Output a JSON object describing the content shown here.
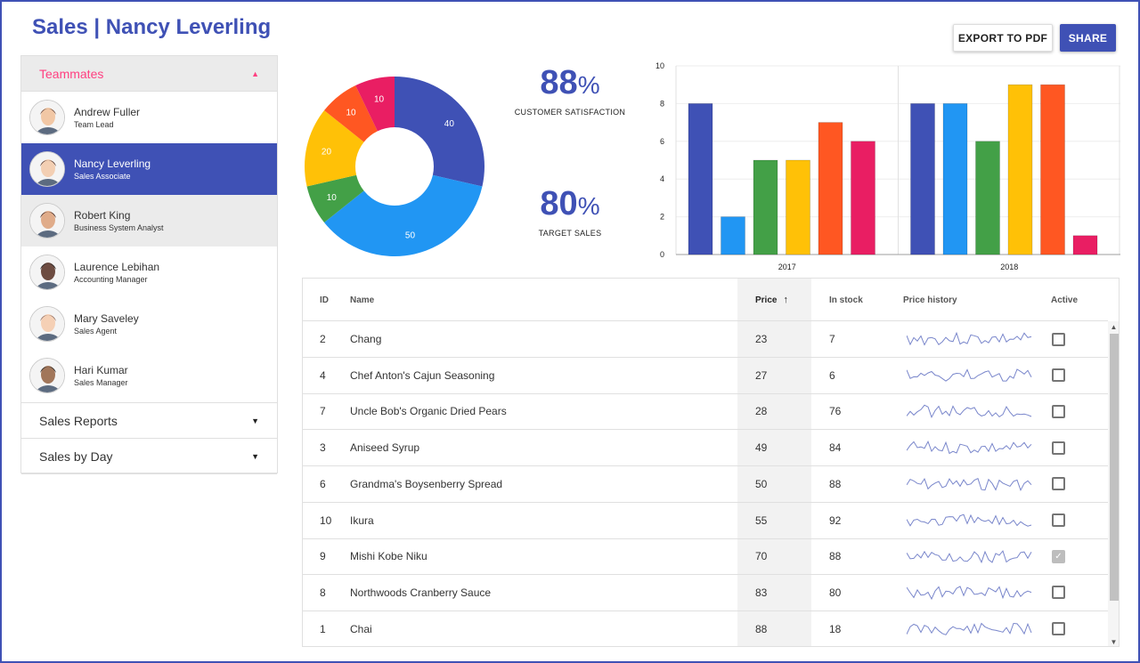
{
  "header": {
    "title": "Sales | Nancy Leverling",
    "export_label": "EXPORT TO PDF",
    "share_label": "SHARE"
  },
  "sidebar": {
    "teammates_label": "Teammates",
    "teammates": [
      {
        "name": "Andrew Fuller",
        "role": "Team Lead",
        "state": "normal"
      },
      {
        "name": "Nancy Leverling",
        "role": "Sales Associate",
        "state": "selected"
      },
      {
        "name": "Robert King",
        "role": "Business System Analyst",
        "state": "hover"
      },
      {
        "name": "Laurence Lebihan",
        "role": "Accounting Manager",
        "state": "normal"
      },
      {
        "name": "Mary Saveley",
        "role": "Sales Agent",
        "state": "normal"
      },
      {
        "name": "Hari Kumar",
        "role": "Sales Manager",
        "state": "normal"
      }
    ],
    "sales_reports_label": "Sales Reports",
    "sales_by_day_label": "Sales by Day"
  },
  "kpis": [
    {
      "value": "88",
      "unit": "%",
      "label": "CUSTOMER SATISFACTION"
    },
    {
      "value": "80",
      "unit": "%",
      "label": "TARGET SALES"
    }
  ],
  "chart_data": [
    {
      "type": "pie",
      "donut": true,
      "values": [
        40,
        50,
        10,
        20,
        10,
        10
      ],
      "colors": [
        "#3f51b5",
        "#2196f3",
        "#43a047",
        "#ffc107",
        "#ff5722",
        "#e91e63"
      ]
    },
    {
      "type": "bar",
      "categories": [
        "2017",
        "2018"
      ],
      "ylim": [
        0,
        10
      ],
      "yticks": [
        "0",
        "2",
        "4",
        "6",
        "8",
        "10"
      ],
      "grid": true,
      "series": [
        {
          "values": [
            8,
            8
          ],
          "color": "#3f51b5"
        },
        {
          "values": [
            2,
            8
          ],
          "color": "#2196f3"
        },
        {
          "values": [
            5,
            6
          ],
          "color": "#43a047"
        },
        {
          "values": [
            5,
            9
          ],
          "color": "#ffc107"
        },
        {
          "values": [
            7,
            9
          ],
          "color": "#ff5722"
        },
        {
          "values": [
            6,
            1
          ],
          "color": "#e91e63"
        }
      ]
    }
  ],
  "grid": {
    "columns": {
      "id": "ID",
      "name": "Name",
      "price": "Price",
      "stock": "In stock",
      "history": "Price history",
      "active": "Active"
    },
    "sort_icon": "arrow-up-icon",
    "rows": [
      {
        "id": "2",
        "name": "Chang",
        "price": "23",
        "stock": "7",
        "active": false
      },
      {
        "id": "4",
        "name": "Chef Anton's Cajun Seasoning",
        "price": "27",
        "stock": "6",
        "active": false
      },
      {
        "id": "7",
        "name": "Uncle Bob's Organic Dried Pears",
        "price": "28",
        "stock": "76",
        "active": false
      },
      {
        "id": "3",
        "name": "Aniseed Syrup",
        "price": "49",
        "stock": "84",
        "active": false
      },
      {
        "id": "6",
        "name": "Grandma's Boysenberry Spread",
        "price": "50",
        "stock": "88",
        "active": false
      },
      {
        "id": "10",
        "name": "Ikura",
        "price": "55",
        "stock": "92",
        "active": false
      },
      {
        "id": "9",
        "name": "Mishi Kobe Niku",
        "price": "70",
        "stock": "88",
        "active": true
      },
      {
        "id": "8",
        "name": "Northwoods Cranberry Sauce",
        "price": "83",
        "stock": "80",
        "active": false
      },
      {
        "id": "1",
        "name": "Chai",
        "price": "88",
        "stock": "18",
        "active": false
      }
    ],
    "sparkline_color": "#7986cb"
  }
}
